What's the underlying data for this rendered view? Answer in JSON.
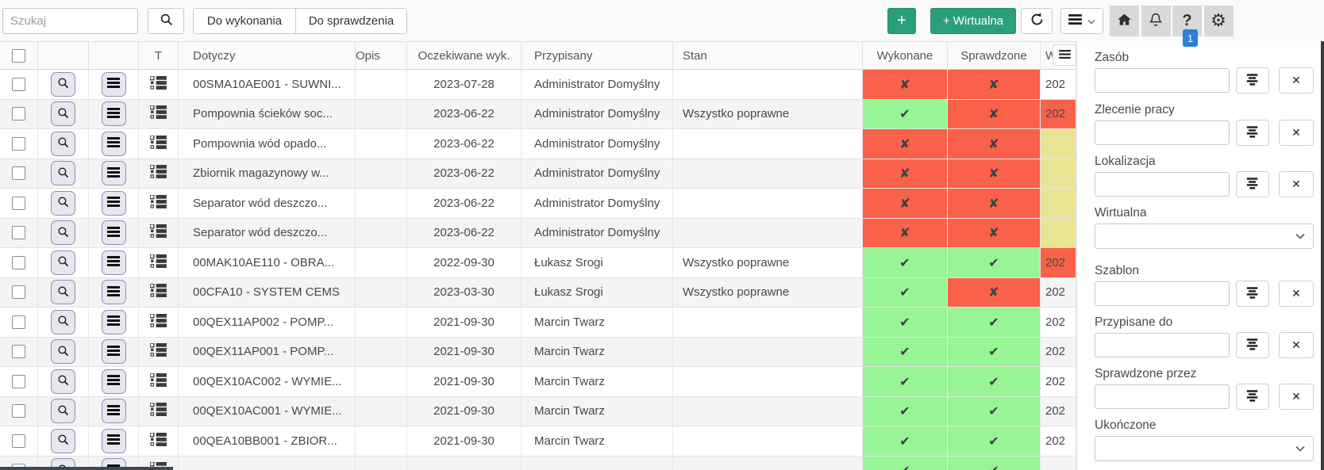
{
  "toolbar": {
    "search_placeholder": "Szukaj",
    "do_wykonania": "Do wykonania",
    "do_sprawdzenia": "Do sprawdzenia",
    "add_label": "+",
    "add_virtual_label": "+ Wirtualna",
    "help_label": "?",
    "gear_glyph": "⚙",
    "help_badge_count": "1"
  },
  "table": {
    "headers": {
      "type": "T",
      "dotyczy": "Dotyczy",
      "opis": "Opis",
      "oczekiwane": "Oczekiwane wyk.",
      "przypisany": "Przypisany",
      "stan": "Stan",
      "wykonane": "Wykonane",
      "sprawdzone": "Sprawdzone",
      "clipped": "W"
    },
    "rows": [
      {
        "dotyczy": "00SMA10AE001 - SUWNI...",
        "opis": "",
        "oczekiwane": "2023-07-28",
        "przypisany": "Administrator Domyślny",
        "stan": "",
        "wykonane": false,
        "sprawdzone": false,
        "extra_text": "202",
        "extra_bg": "white"
      },
      {
        "dotyczy": "Pompownia ścieków soc...",
        "opis": "",
        "oczekiwane": "2023-06-22",
        "przypisany": "Administrator Domyślny",
        "stan": "Wszystko poprawne",
        "wykonane": true,
        "sprawdzone": false,
        "extra_text": "202",
        "extra_bg": "red"
      },
      {
        "dotyczy": "Pompownia wód opado...",
        "opis": "",
        "oczekiwane": "2023-06-22",
        "przypisany": "Administrator Domyślny",
        "stan": "",
        "wykonane": false,
        "sprawdzone": false,
        "extra_text": "",
        "extra_bg": "yellow"
      },
      {
        "dotyczy": "Zbiornik magazynowy w...",
        "opis": "",
        "oczekiwane": "2023-06-22",
        "przypisany": "Administrator Domyślny",
        "stan": "",
        "wykonane": false,
        "sprawdzone": false,
        "extra_text": "",
        "extra_bg": "yellow"
      },
      {
        "dotyczy": "Separator wód deszczo...",
        "opis": "",
        "oczekiwane": "2023-06-22",
        "przypisany": "Administrator Domyślny",
        "stan": "",
        "wykonane": false,
        "sprawdzone": false,
        "extra_text": "",
        "extra_bg": "yellow"
      },
      {
        "dotyczy": "Separator wód deszczo...",
        "opis": "",
        "oczekiwane": "2023-06-22",
        "przypisany": "Administrator Domyślny",
        "stan": "",
        "wykonane": false,
        "sprawdzone": false,
        "extra_text": "",
        "extra_bg": "yellow"
      },
      {
        "dotyczy": "00MAK10AE110 - OBRA...",
        "opis": "",
        "oczekiwane": "2022-09-30",
        "przypisany": "Łukasz Srogi",
        "stan": "Wszystko poprawne",
        "wykonane": true,
        "sprawdzone": true,
        "extra_text": "202",
        "extra_bg": "red"
      },
      {
        "dotyczy": "00CFA10 - SYSTEM CEMS",
        "opis": "",
        "oczekiwane": "2023-03-30",
        "przypisany": "Łukasz Srogi",
        "stan": "Wszystko poprawne",
        "wykonane": true,
        "sprawdzone": false,
        "extra_text": "202",
        "extra_bg": "white"
      },
      {
        "dotyczy": "00QEX11AP002 - POMP...",
        "opis": "",
        "oczekiwane": "2021-09-30",
        "przypisany": "Marcin Twarz",
        "stan": "",
        "wykonane": true,
        "sprawdzone": true,
        "extra_text": "202",
        "extra_bg": "white"
      },
      {
        "dotyczy": "00QEX11AP001 - POMP...",
        "opis": "",
        "oczekiwane": "2021-09-30",
        "przypisany": "Marcin Twarz",
        "stan": "",
        "wykonane": true,
        "sprawdzone": true,
        "extra_text": "202",
        "extra_bg": "white"
      },
      {
        "dotyczy": "00QEX10AC002 - WYMIE...",
        "opis": "",
        "oczekiwane": "2021-09-30",
        "przypisany": "Marcin Twarz",
        "stan": "",
        "wykonane": true,
        "sprawdzone": true,
        "extra_text": "202",
        "extra_bg": "white"
      },
      {
        "dotyczy": "00QEX10AC001 - WYMIE...",
        "opis": "",
        "oczekiwane": "2021-09-30",
        "przypisany": "Marcin Twarz",
        "stan": "",
        "wykonane": true,
        "sprawdzone": true,
        "extra_text": "202",
        "extra_bg": "white"
      },
      {
        "dotyczy": "00QEA10BB001 - ZBIOR...",
        "opis": "",
        "oczekiwane": "2021-09-30",
        "przypisany": "Marcin Twarz",
        "stan": "",
        "wykonane": true,
        "sprawdzone": true,
        "extra_text": "202",
        "extra_bg": "white"
      },
      {
        "dotyczy": "",
        "opis": "",
        "oczekiwane": "",
        "przypisany": "",
        "stan": "",
        "wykonane": true,
        "sprawdzone": true,
        "extra_text": "",
        "extra_bg": "white"
      }
    ]
  },
  "panel": {
    "fields": [
      {
        "label": "Zasób",
        "type": "lookup",
        "value": ""
      },
      {
        "label": "Zlecenie pracy",
        "type": "lookup",
        "value": ""
      },
      {
        "label": "Lokalizacja",
        "type": "lookup",
        "value": ""
      },
      {
        "label": "Wirtualna",
        "type": "select",
        "value": ""
      },
      {
        "label": "Szablon",
        "type": "lookup",
        "value": ""
      },
      {
        "label": "Przypisane do",
        "type": "lookup",
        "value": ""
      },
      {
        "label": "Sprawdzone przez",
        "type": "lookup",
        "value": ""
      },
      {
        "label": "Ukończone",
        "type": "select",
        "value": ""
      }
    ]
  },
  "icons": {
    "check": "✔",
    "cross": "✘",
    "clear": "✕"
  },
  "colors": {
    "green_button": "#2b9e7c",
    "red_cell": "#f9614a",
    "green_cell": "#97f595",
    "yellow_cell": "#e9e493",
    "badge_blue": "#2e7fd8"
  }
}
